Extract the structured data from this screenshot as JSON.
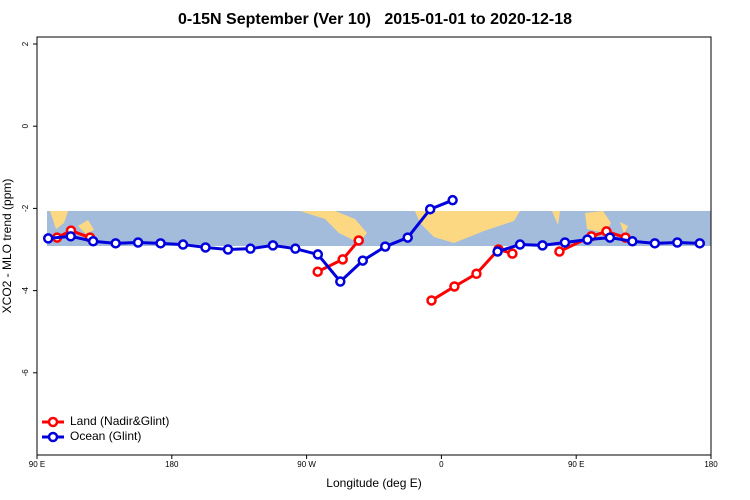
{
  "chart_data": {
    "type": "line",
    "title": "0-15N September (Ver 10)   2015-01-01 to 2020-12-18",
    "x_label": "Longitude (deg E)",
    "y_label": "XCO2 - MLO trend (ppm)",
    "xlim": [
      90,
      540
    ],
    "ylim": [
      -8,
      2.17
    ],
    "xticks": [
      {
        "value": 90,
        "label": "90 E"
      },
      180,
      {
        "value": 270,
        "label": "90 W"
      },
      {
        "value": 360,
        "label": "0"
      },
      {
        "value": 450,
        "label": "90 E"
      },
      {
        "value": 540,
        "label": "180"
      }
    ],
    "yticks": [
      2,
      0,
      -2,
      -4,
      -6
    ],
    "legend": "bottom-left",
    "series": [
      {
        "name": "Land (Nadir&Glint)",
        "color": "#ff0000",
        "x": [
          103.4,
          112.7,
          125.4,
          null,
          277.4,
          294.1,
          304.8,
          null,
          353.4,
          368.7,
          383.4,
          398.1,
          407.4,
          null,
          438.8,
          460.1,
          470.2,
          482.9
        ],
        "values": [
          -2.71,
          -2.54,
          -2.71,
          null,
          -3.54,
          -3.24,
          -2.78,
          null,
          -4.24,
          -3.9,
          -3.59,
          -3.0,
          -3.1,
          null,
          -3.05,
          -2.68,
          -2.56,
          -2.71
        ]
      },
      {
        "name": "Ocean (Glint)",
        "color": "#0000dd",
        "x": [
          97.5,
          112.5,
          127.5,
          142.5,
          157.5,
          172.5,
          187.5,
          202.5,
          217.5,
          232.5,
          247.5,
          262.5,
          277.5,
          292.5,
          307.5,
          322.5,
          337.5,
          352.5,
          367.5,
          382.5,
          397.5,
          412.5,
          427.5,
          442.5,
          457.5,
          472.5,
          487.5,
          502.5,
          517.5,
          532.5
        ],
        "values": [
          -2.73,
          -2.68,
          -2.8,
          -2.85,
          -2.83,
          -2.85,
          -2.88,
          -2.95,
          -3.0,
          -2.98,
          -2.9,
          -2.98,
          -3.12,
          -3.78,
          -3.27,
          -2.93,
          -2.71,
          -2.02,
          -1.8,
          null,
          -3.05,
          -2.88,
          -2.9,
          -2.83,
          -2.76,
          -2.71,
          -2.8,
          -2.85,
          -2.83,
          -2.85
        ]
      }
    ]
  }
}
